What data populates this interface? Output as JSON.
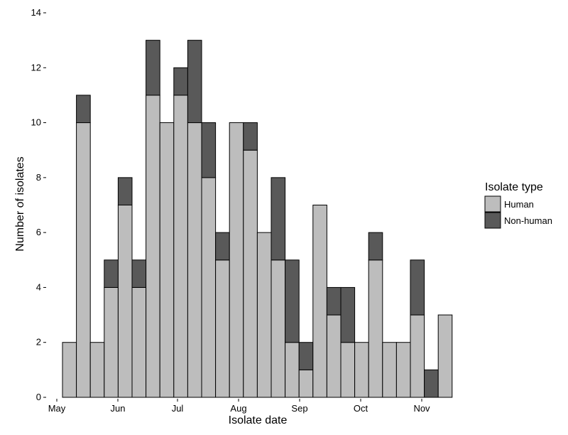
{
  "chart_data": {
    "type": "bar",
    "stacked": true,
    "xlabel": "Isolate date",
    "ylabel": "Number of isolates",
    "ylim": [
      0,
      14
    ],
    "yticks": [
      0,
      2,
      4,
      6,
      8,
      10,
      12,
      14
    ],
    "x_tick_labels": [
      "May",
      "Jun",
      "Jul",
      "Aug",
      "Sep",
      "Oct",
      "Nov"
    ],
    "grid": false,
    "legend_position": "right",
    "legend_title": "Isolate type",
    "colors": {
      "human": "#bdbdbd",
      "non_human": "#595959",
      "outline": "#000000"
    },
    "series": [
      {
        "name": "Human",
        "values": [
          2,
          10,
          2,
          4,
          7,
          4,
          11,
          10,
          11,
          10,
          8,
          5,
          10,
          9,
          6,
          5,
          2,
          1,
          7,
          3,
          2,
          2,
          5,
          2,
          2,
          3,
          0,
          3
        ]
      },
      {
        "name": "Non-human",
        "values": [
          0,
          1,
          0,
          1,
          1,
          1,
          2,
          0,
          1,
          3,
          2,
          1,
          0,
          1,
          0,
          3,
          3,
          1,
          0,
          1,
          2,
          0,
          1,
          0,
          0,
          2,
          1,
          0
        ]
      }
    ]
  }
}
